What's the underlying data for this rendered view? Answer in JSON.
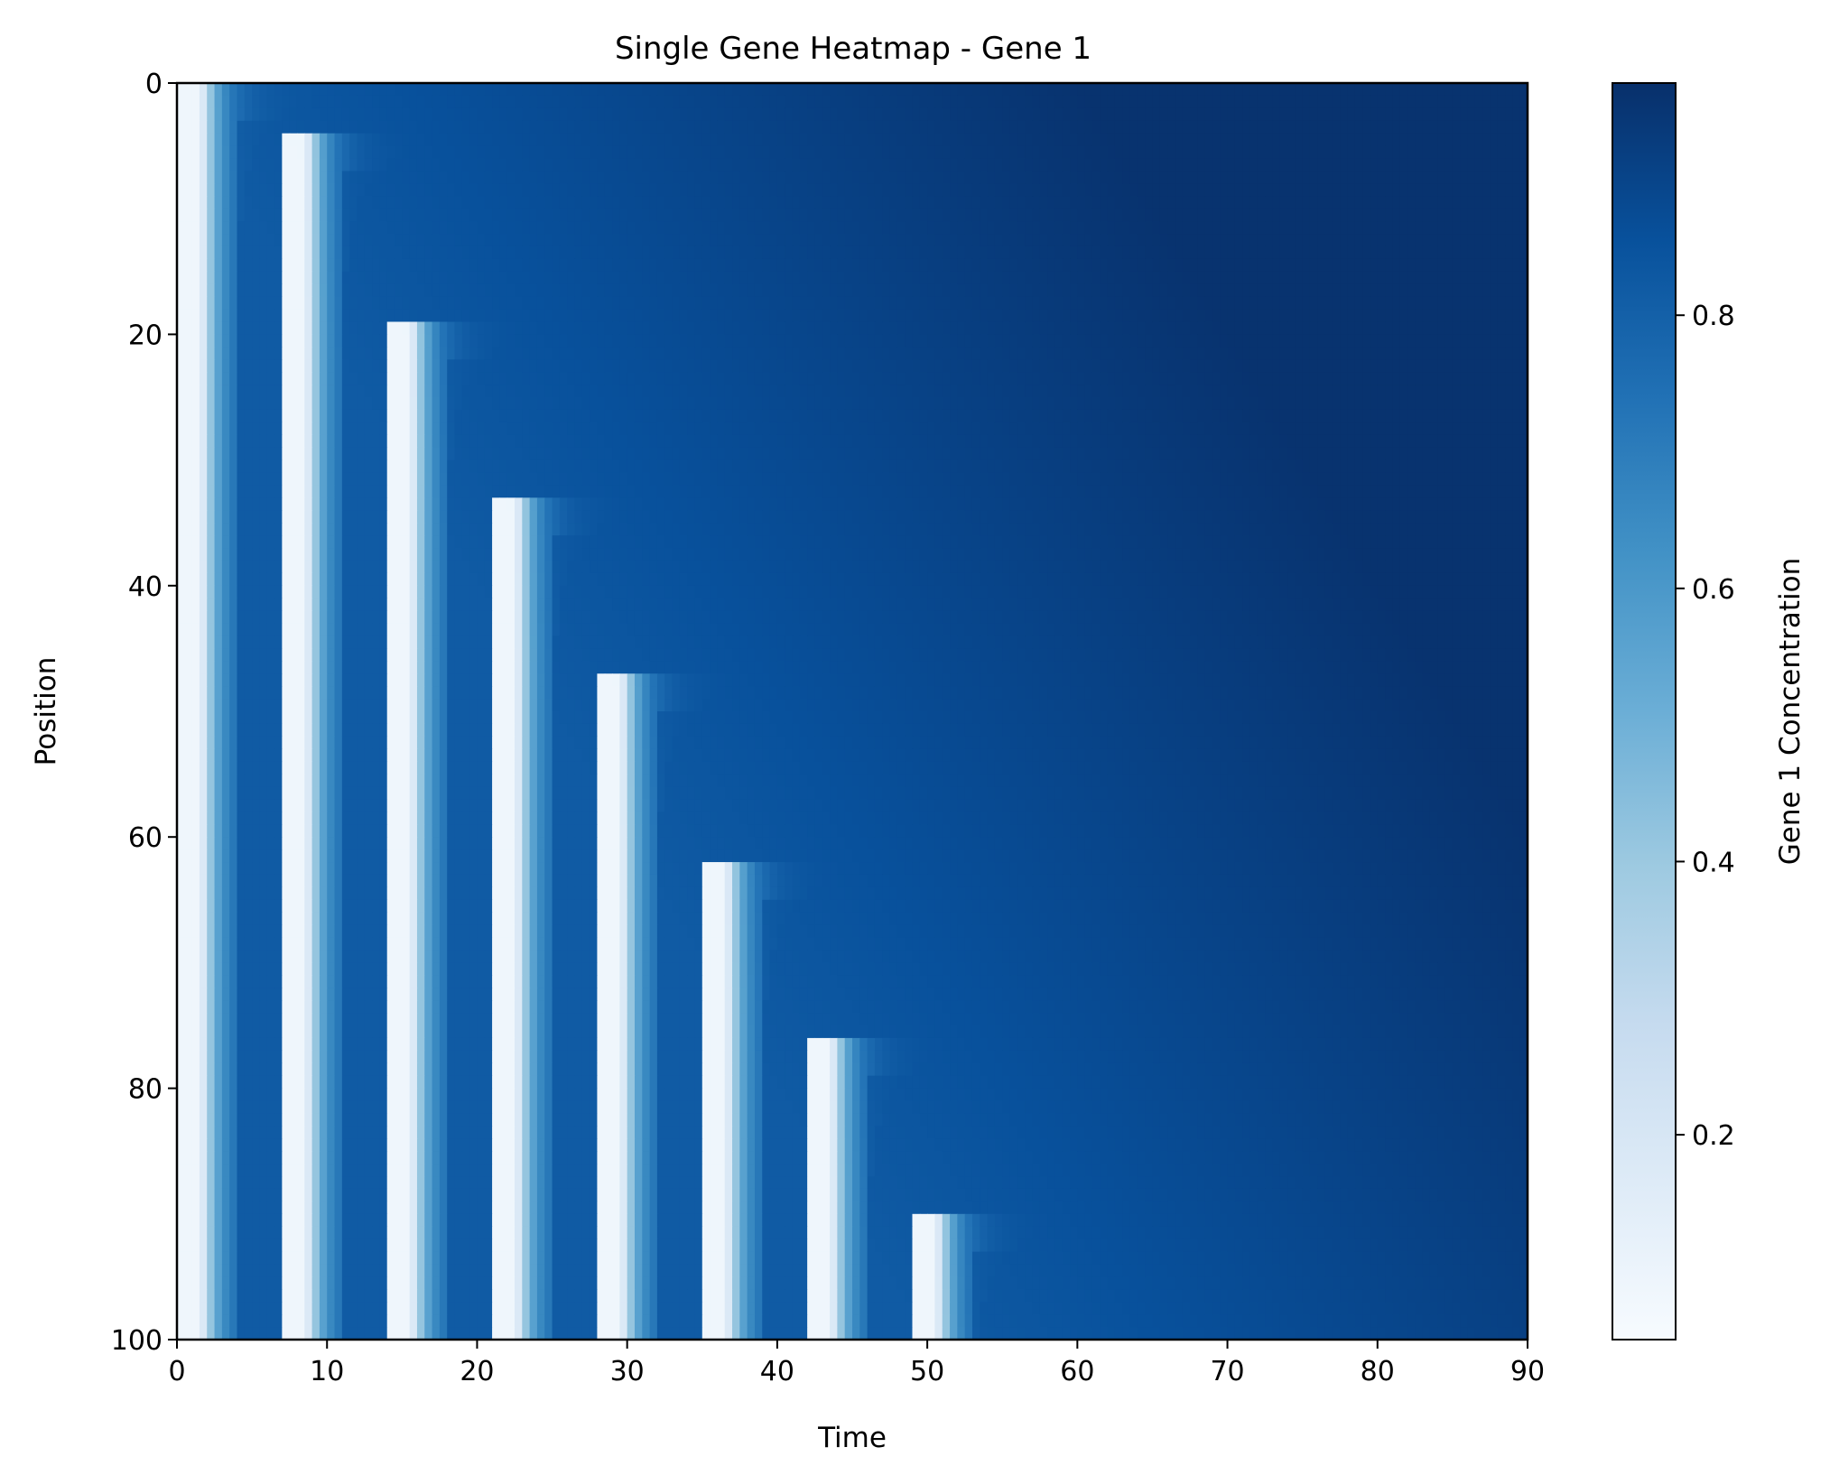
{
  "chart_data": {
    "type": "heatmap",
    "title": "Single Gene Heatmap - Gene 1",
    "xlabel": "Time",
    "ylabel": "Position",
    "xlim": [
      0,
      90
    ],
    "ylim": [
      100,
      0
    ],
    "y_inverted": true,
    "xticks": [
      "0",
      "10",
      "20",
      "30",
      "40",
      "50",
      "60",
      "70",
      "80",
      "90"
    ],
    "xtick_values": [
      0,
      10,
      20,
      30,
      40,
      50,
      60,
      70,
      80,
      90
    ],
    "yticks": [
      "0",
      "20",
      "40",
      "60",
      "80",
      "100"
    ],
    "ytick_values": [
      0,
      20,
      40,
      60,
      80,
      100
    ],
    "colormap": "Blues",
    "colormap_stops": [
      "#f7fbff",
      "#deebf7",
      "#c6dbef",
      "#9ecae1",
      "#6baed6",
      "#4292c6",
      "#2171b5",
      "#08519c",
      "#08306b"
    ],
    "colorbar": {
      "label": "Gene 1 Concentration",
      "range": [
        0.05,
        0.97
      ],
      "ticks": [
        "0.2",
        "0.4",
        "0.6",
        "0.8"
      ],
      "tick_values": [
        0.2,
        0.4,
        0.6,
        0.8
      ]
    },
    "grid": false,
    "wave_fronts": [
      {
        "onset_time": 0,
        "front_position": 0
      },
      {
        "onset_time": 7,
        "front_position": 4
      },
      {
        "onset_time": 14,
        "front_position": 19
      },
      {
        "onset_time": 21,
        "front_position": 33
      },
      {
        "onset_time": 28,
        "front_position": 47
      },
      {
        "onset_time": 35,
        "front_position": 62
      },
      {
        "onset_time": 42,
        "front_position": 76
      },
      {
        "onset_time": 49,
        "front_position": 90
      }
    ],
    "background_levels": {
      "early_near_front": 0.82,
      "late": 0.96
    },
    "grid_resolution": {
      "time_points": 180,
      "positions": 100
    }
  }
}
